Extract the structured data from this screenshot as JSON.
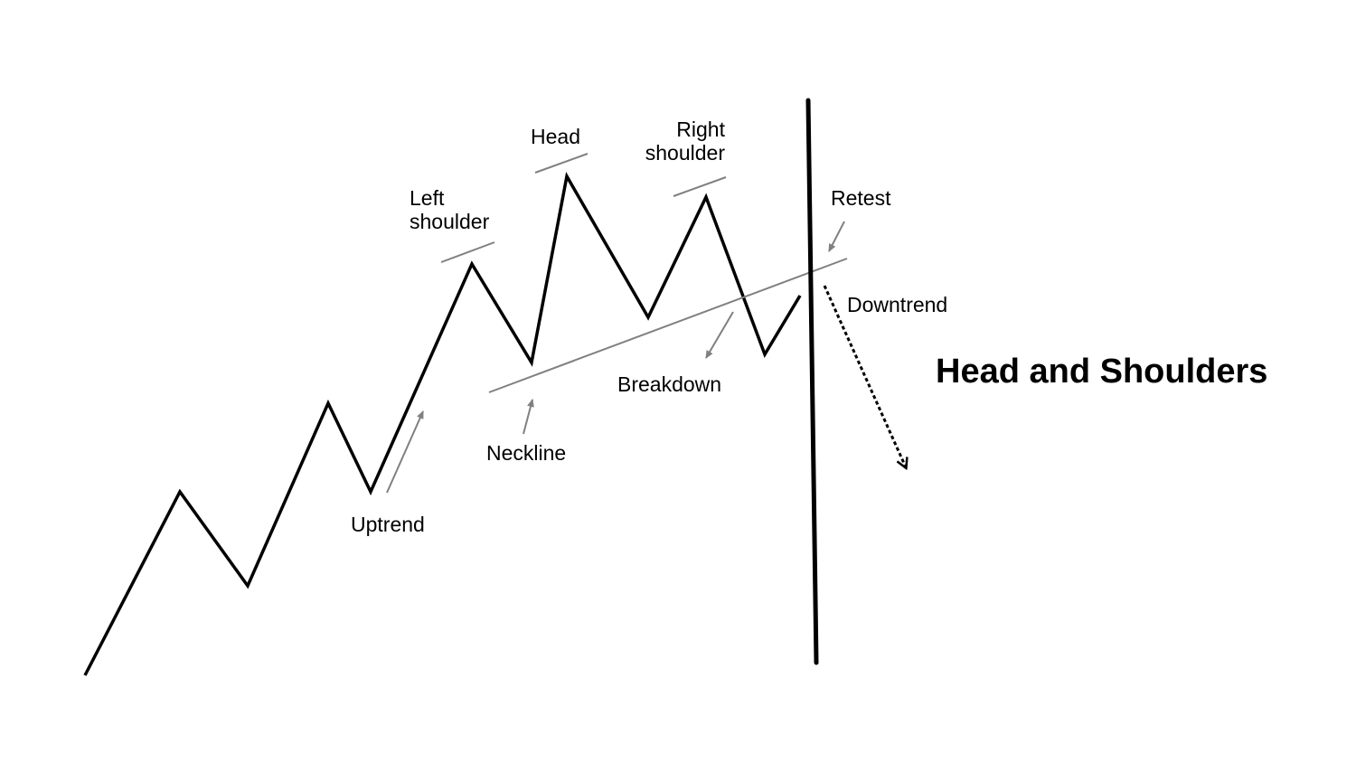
{
  "title": "Head and Shoulders",
  "labels": {
    "left_shoulder_line1": "Left",
    "left_shoulder_line2": "shoulder",
    "head": "Head",
    "right_shoulder_line1": "Right",
    "right_shoulder_line2": "shoulder",
    "retest": "Retest",
    "downtrend": "Downtrend",
    "breakdown": "Breakdown",
    "neckline": "Neckline",
    "uptrend": "Uptrend"
  },
  "colors": {
    "price_line": "#000000",
    "annotation": "#808080",
    "background": "#ffffff"
  }
}
